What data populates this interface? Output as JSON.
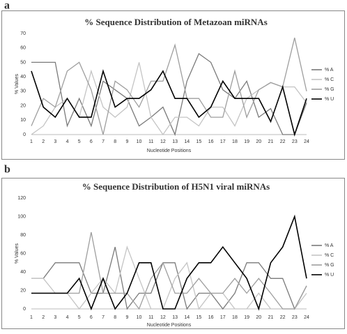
{
  "chart_data": [
    {
      "type": "line",
      "panel": "a",
      "title": "% Sequence Distribution of Metazoan miRNAs",
      "xlabel": "Nucleotide Positions",
      "ylabel": "% Values",
      "categories": [
        "1",
        "2",
        "3",
        "4",
        "5",
        "6",
        "7",
        "8",
        "9",
        "10",
        "11",
        "12",
        "13",
        "14",
        "15",
        "16",
        "17",
        "18",
        "19",
        "20",
        "21",
        "22",
        "23",
        "24"
      ],
      "ylim": [
        0,
        70
      ],
      "yticks": [
        0,
        10,
        20,
        30,
        40,
        50,
        60,
        70
      ],
      "grid": false,
      "legend": "right",
      "series": [
        {
          "name": "% A",
          "color": "#7a7a7a",
          "values": [
            50,
            50,
            50,
            6,
            25,
            6,
            37,
            31,
            25,
            6,
            12,
            19,
            0,
            37,
            56,
            50,
            31,
            25,
            37,
            12,
            18,
            0,
            0,
            22
          ]
        },
        {
          "name": "% C",
          "color": "#c4c4c4",
          "values": [
            0,
            6,
            19,
            25,
            12,
            44,
            19,
            12,
            19,
            50,
            12,
            0,
            12,
            12,
            6,
            19,
            19,
            6,
            25,
            31,
            36,
            33,
            33,
            22
          ]
        },
        {
          "name": "% G",
          "color": "#9e9e9e",
          "values": [
            6,
            25,
            19,
            44,
            50,
            31,
            0,
            37,
            31,
            19,
            37,
            37,
            62,
            25,
            25,
            12,
            12,
            44,
            12,
            31,
            36,
            33,
            67,
            30
          ]
        },
        {
          "name": "% U",
          "color": "#000000",
          "values": [
            44,
            19,
            12,
            25,
            12,
            12,
            44,
            19,
            25,
            25,
            31,
            44,
            25,
            25,
            12,
            19,
            37,
            25,
            25,
            25,
            9,
            33,
            0,
            25
          ]
        }
      ]
    },
    {
      "type": "line",
      "panel": "b",
      "title": "% Sequence Distribution of H5N1 viral miRNAs",
      "xlabel": "Nucleotide Positions",
      "ylabel": "% Values",
      "categories": [
        "1",
        "2",
        "3",
        "4",
        "5",
        "6",
        "7",
        "8",
        "9",
        "10",
        "11",
        "12",
        "13",
        "14",
        "15",
        "16",
        "17",
        "18",
        "19",
        "20",
        "21",
        "22",
        "23",
        "24"
      ],
      "ylim": [
        0,
        120
      ],
      "yticks": [
        0,
        20,
        40,
        60,
        80,
        100,
        120
      ],
      "grid": false,
      "legend": "right",
      "series": [
        {
          "name": "% A",
          "color": "#7a7a7a",
          "values": [
            33,
            33,
            50,
            50,
            50,
            17,
            17,
            67,
            0,
            17,
            17,
            50,
            50,
            0,
            17,
            17,
            0,
            17,
            50,
            50,
            33,
            33,
            0,
            25
          ]
        },
        {
          "name": "% C",
          "color": "#c4c4c4",
          "values": [
            33,
            33,
            17,
            17,
            0,
            17,
            33,
            17,
            67,
            33,
            0,
            0,
            33,
            50,
            0,
            17,
            17,
            0,
            0,
            17,
            0,
            0,
            0,
            17
          ]
        },
        {
          "name": "% G",
          "color": "#9e9e9e",
          "values": [
            17,
            17,
            17,
            17,
            17,
            83,
            17,
            17,
            17,
            0,
            33,
            50,
            17,
            17,
            33,
            17,
            17,
            33,
            17,
            33,
            17,
            0,
            0,
            25
          ]
        },
        {
          "name": "% U",
          "color": "#000000",
          "values": [
            17,
            17,
            17,
            17,
            33,
            0,
            33,
            0,
            17,
            50,
            50,
            0,
            0,
            33,
            50,
            50,
            67,
            50,
            33,
            0,
            50,
            67,
            100,
            33
          ]
        }
      ]
    }
  ]
}
